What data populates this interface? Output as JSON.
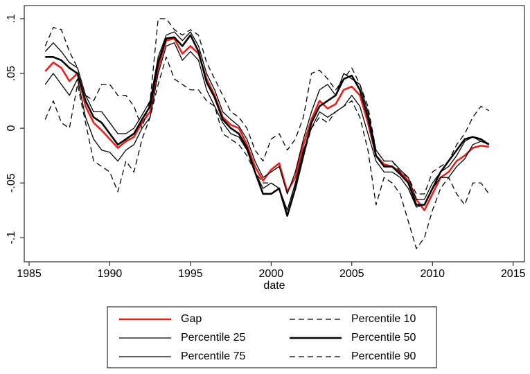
{
  "chart_data": {
    "type": "line",
    "x_label": "date",
    "xlim": [
      1984.7,
      2015.7
    ],
    "xticks": [
      1985,
      1990,
      1995,
      2000,
      2005,
      2010,
      2015
    ],
    "ylim": [
      -0.122,
      0.112
    ],
    "yticks": [
      {
        "value": -0.1,
        "label": "-.1"
      },
      {
        "value": -0.05,
        "label": "-.05"
      },
      0,
      {
        "value": 0.05,
        "label": ".05"
      },
      {
        "value": 0.1,
        "label": ".1"
      }
    ],
    "x": [
      1986,
      1986.5,
      1987,
      1987.5,
      1988,
      1988.5,
      1989,
      1989.5,
      1990,
      1990.5,
      1991,
      1991.5,
      1992,
      1992.5,
      1993,
      1993.5,
      1994,
      1994.5,
      1995,
      1995.5,
      1996,
      1996.5,
      1997,
      1997.5,
      1998,
      1998.5,
      1999,
      1999.5,
      2000,
      2000.5,
      2001,
      2001.5,
      2002,
      2002.5,
      2003,
      2003.5,
      2004,
      2004.5,
      2005,
      2005.5,
      2006,
      2006.5,
      2007,
      2007.5,
      2008,
      2008.5,
      2009,
      2009.5,
      2010,
      2010.5,
      2011,
      2011.5,
      2012,
      2012.5,
      2013,
      2013.5
    ],
    "series": [
      {
        "name": "Gap",
        "color": "#e8201a",
        "weight": "thick",
        "dash": false,
        "values": [
          0.052,
          0.06,
          0.055,
          0.043,
          0.05,
          0.02,
          0.005,
          -0.002,
          -0.01,
          -0.018,
          -0.012,
          -0.008,
          0.005,
          0.015,
          0.055,
          0.08,
          0.082,
          0.068,
          0.075,
          0.068,
          0.045,
          0.03,
          0.01,
          0.003,
          0.0,
          -0.015,
          -0.035,
          -0.048,
          -0.038,
          -0.032,
          -0.058,
          -0.045,
          -0.015,
          0.008,
          0.025,
          0.018,
          0.022,
          0.035,
          0.038,
          0.03,
          0.005,
          -0.025,
          -0.033,
          -0.035,
          -0.04,
          -0.048,
          -0.065,
          -0.075,
          -0.06,
          -0.045,
          -0.04,
          -0.03,
          -0.025,
          -0.018,
          -0.016,
          -0.017
        ]
      },
      {
        "name": "Percentile 10",
        "color": "#000000",
        "weight": "thin",
        "dash": true,
        "values": [
          0.008,
          0.025,
          0.005,
          0.0,
          0.04,
          0.005,
          -0.03,
          -0.035,
          -0.04,
          -0.058,
          -0.03,
          -0.04,
          -0.01,
          0.01,
          0.04,
          0.065,
          0.045,
          0.04,
          0.035,
          0.035,
          0.025,
          0.02,
          -0.005,
          -0.01,
          -0.015,
          -0.025,
          -0.04,
          -0.05,
          -0.05,
          -0.055,
          -0.075,
          -0.05,
          -0.025,
          0.0,
          0.01,
          0.005,
          0.015,
          0.02,
          0.025,
          0.01,
          -0.02,
          -0.07,
          -0.045,
          -0.05,
          -0.06,
          -0.085,
          -0.11,
          -0.1,
          -0.075,
          -0.055,
          -0.045,
          -0.06,
          -0.07,
          -0.05,
          -0.05,
          -0.06
        ]
      },
      {
        "name": "Percentile 25",
        "color": "#000000",
        "weight": "thin",
        "dash": false,
        "values": [
          0.04,
          0.05,
          0.04,
          0.03,
          0.045,
          0.01,
          -0.01,
          -0.02,
          -0.022,
          -0.03,
          -0.02,
          -0.015,
          0.0,
          0.01,
          0.05,
          0.075,
          0.078,
          0.062,
          0.07,
          0.062,
          0.035,
          0.02,
          0.005,
          -0.005,
          -0.008,
          -0.02,
          -0.04,
          -0.055,
          -0.05,
          -0.055,
          -0.075,
          -0.05,
          -0.02,
          0.0,
          0.015,
          0.01,
          0.015,
          0.02,
          0.03,
          0.02,
          -0.005,
          -0.03,
          -0.04,
          -0.04,
          -0.045,
          -0.055,
          -0.072,
          -0.07,
          -0.055,
          -0.045,
          -0.045,
          -0.035,
          -0.028,
          -0.015,
          -0.012,
          -0.015
        ]
      },
      {
        "name": "Percentile 50",
        "color": "#000000",
        "weight": "thick",
        "dash": false,
        "values": [
          0.065,
          0.065,
          0.062,
          0.055,
          0.05,
          0.025,
          0.01,
          0.005,
          -0.005,
          -0.015,
          -0.01,
          -0.005,
          0.008,
          0.02,
          0.06,
          0.082,
          0.083,
          0.075,
          0.085,
          0.07,
          0.042,
          0.028,
          0.008,
          0.0,
          -0.005,
          -0.018,
          -0.04,
          -0.06,
          -0.06,
          -0.055,
          -0.08,
          -0.055,
          -0.025,
          0.005,
          0.02,
          0.025,
          0.03,
          0.045,
          0.048,
          0.035,
          0.01,
          -0.025,
          -0.035,
          -0.035,
          -0.042,
          -0.05,
          -0.07,
          -0.07,
          -0.055,
          -0.04,
          -0.03,
          -0.02,
          -0.01,
          -0.008,
          -0.01,
          -0.015
        ]
      },
      {
        "name": "Percentile 75",
        "color": "#000000",
        "weight": "thin",
        "dash": false,
        "values": [
          0.07,
          0.078,
          0.07,
          0.06,
          0.055,
          0.03,
          0.015,
          0.015,
          0.005,
          -0.005,
          -0.005,
          0.0,
          0.012,
          0.025,
          0.065,
          0.085,
          0.088,
          0.08,
          0.088,
          0.075,
          0.05,
          0.035,
          0.015,
          0.008,
          0.002,
          -0.01,
          -0.03,
          -0.045,
          -0.04,
          -0.035,
          -0.06,
          -0.04,
          -0.01,
          0.015,
          0.035,
          0.04,
          0.03,
          0.05,
          0.045,
          0.04,
          0.015,
          -0.02,
          -0.03,
          -0.03,
          -0.038,
          -0.045,
          -0.065,
          -0.065,
          -0.05,
          -0.04,
          -0.035,
          -0.025,
          -0.012,
          -0.008,
          -0.012,
          -0.014
        ]
      },
      {
        "name": "Percentile 90",
        "color": "#000000",
        "weight": "thin",
        "dash": true,
        "values": [
          0.075,
          0.092,
          0.09,
          0.07,
          0.055,
          0.03,
          0.025,
          0.04,
          0.04,
          0.03,
          0.03,
          0.02,
          0.0,
          0.025,
          0.1,
          0.1,
          0.09,
          0.085,
          0.09,
          0.085,
          0.06,
          0.045,
          0.03,
          0.015,
          0.01,
          0.0,
          -0.02,
          -0.03,
          -0.01,
          -0.005,
          -0.02,
          -0.01,
          0.01,
          0.05,
          0.053,
          0.045,
          0.035,
          0.045,
          0.055,
          0.04,
          0.02,
          -0.02,
          -0.03,
          -0.03,
          -0.04,
          -0.045,
          -0.06,
          -0.06,
          -0.04,
          -0.035,
          -0.03,
          -0.015,
          -0.005,
          0.01,
          0.02,
          0.016
        ]
      }
    ]
  }
}
